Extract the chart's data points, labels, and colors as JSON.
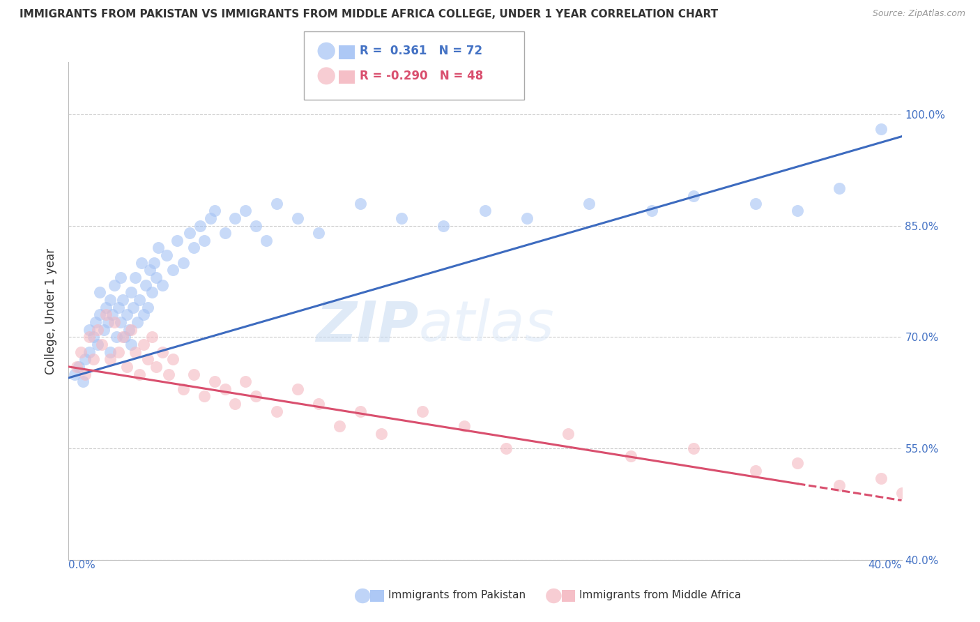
{
  "title": "IMMIGRANTS FROM PAKISTAN VS IMMIGRANTS FROM MIDDLE AFRICA COLLEGE, UNDER 1 YEAR CORRELATION CHART",
  "source": "Source: ZipAtlas.com",
  "ylabel": "College, Under 1 year",
  "pakistan_R": 0.361,
  "pakistan_N": 72,
  "middle_africa_R": -0.29,
  "middle_africa_N": 48,
  "pakistan_color": "#a4c2f4",
  "middle_africa_color": "#f4b8c1",
  "pakistan_line_color": "#3d6bbf",
  "middle_africa_line_color": "#d94f6e",
  "watermark_zip": "ZIP",
  "watermark_atlas": "atlas",
  "xlim": [
    0.0,
    40.0
  ],
  "ylim": [
    40.0,
    107.0
  ],
  "yticks": [
    40,
    55,
    70,
    85,
    100
  ],
  "ytick_labels": [
    "40.0%",
    "55.0%",
    "70.0%",
    "85.0%",
    "100.0%"
  ],
  "pakistan_scatter_x": [
    0.3,
    0.5,
    0.7,
    0.8,
    1.0,
    1.0,
    1.2,
    1.3,
    1.4,
    1.5,
    1.5,
    1.7,
    1.8,
    1.9,
    2.0,
    2.0,
    2.1,
    2.2,
    2.3,
    2.4,
    2.5,
    2.5,
    2.6,
    2.7,
    2.8,
    2.9,
    3.0,
    3.0,
    3.1,
    3.2,
    3.3,
    3.4,
    3.5,
    3.6,
    3.7,
    3.8,
    3.9,
    4.0,
    4.1,
    4.2,
    4.3,
    4.5,
    4.7,
    5.0,
    5.2,
    5.5,
    5.8,
    6.0,
    6.3,
    6.5,
    6.8,
    7.0,
    7.5,
    8.0,
    8.5,
    9.0,
    9.5,
    10.0,
    11.0,
    12.0,
    14.0,
    16.0,
    18.0,
    20.0,
    22.0,
    25.0,
    28.0,
    30.0,
    33.0,
    35.0,
    37.0,
    39.0
  ],
  "pakistan_scatter_y": [
    65.0,
    66.0,
    64.0,
    67.0,
    68.0,
    71.0,
    70.0,
    72.0,
    69.0,
    73.0,
    76.0,
    71.0,
    74.0,
    72.0,
    75.0,
    68.0,
    73.0,
    77.0,
    70.0,
    74.0,
    72.0,
    78.0,
    75.0,
    70.0,
    73.0,
    71.0,
    76.0,
    69.0,
    74.0,
    78.0,
    72.0,
    75.0,
    80.0,
    73.0,
    77.0,
    74.0,
    79.0,
    76.0,
    80.0,
    78.0,
    82.0,
    77.0,
    81.0,
    79.0,
    83.0,
    80.0,
    84.0,
    82.0,
    85.0,
    83.0,
    86.0,
    87.0,
    84.0,
    86.0,
    87.0,
    85.0,
    83.0,
    88.0,
    86.0,
    84.0,
    88.0,
    86.0,
    85.0,
    87.0,
    86.0,
    88.0,
    87.0,
    89.0,
    88.0,
    87.0,
    90.0,
    98.0
  ],
  "middle_africa_scatter_x": [
    0.4,
    0.6,
    0.8,
    1.0,
    1.2,
    1.4,
    1.6,
    1.8,
    2.0,
    2.2,
    2.4,
    2.6,
    2.8,
    3.0,
    3.2,
    3.4,
    3.6,
    3.8,
    4.0,
    4.2,
    4.5,
    4.8,
    5.0,
    5.5,
    6.0,
    6.5,
    7.0,
    7.5,
    8.0,
    8.5,
    9.0,
    10.0,
    11.0,
    12.0,
    13.0,
    14.0,
    15.0,
    17.0,
    19.0,
    21.0,
    24.0,
    27.0,
    30.0,
    33.0,
    35.0,
    37.0,
    39.0,
    40.0
  ],
  "middle_africa_scatter_y": [
    66.0,
    68.0,
    65.0,
    70.0,
    67.0,
    71.0,
    69.0,
    73.0,
    67.0,
    72.0,
    68.0,
    70.0,
    66.0,
    71.0,
    68.0,
    65.0,
    69.0,
    67.0,
    70.0,
    66.0,
    68.0,
    65.0,
    67.0,
    63.0,
    65.0,
    62.0,
    64.0,
    63.0,
    61.0,
    64.0,
    62.0,
    60.0,
    63.0,
    61.0,
    58.0,
    60.0,
    57.0,
    60.0,
    58.0,
    55.0,
    57.0,
    54.0,
    55.0,
    52.0,
    53.0,
    50.0,
    51.0,
    49.0
  ],
  "pk_line_x0": 0.0,
  "pk_line_y0": 64.5,
  "pk_line_x1": 40.0,
  "pk_line_y1": 97.0,
  "ma_line_x0": 0.0,
  "ma_line_y0": 66.0,
  "ma_line_x1": 40.0,
  "ma_line_y1": 48.0,
  "ma_solid_end": 35.0
}
